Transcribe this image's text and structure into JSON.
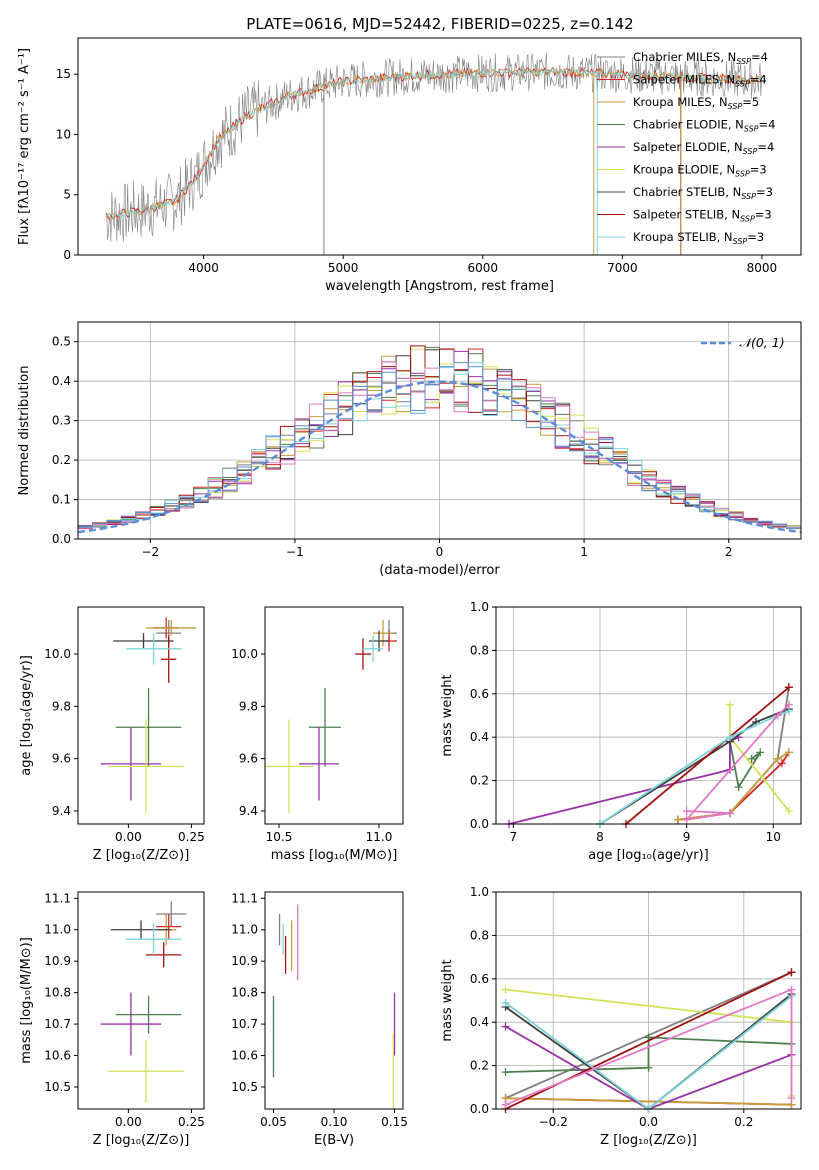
{
  "title": "PLATE=0616, MJD=52442, FIBERID=0225, z=0.142",
  "colors": {
    "Chabrier MILES": "#7f7f7f",
    "Salpeter MILES": "#d62728",
    "Kroupa MILES": "#c89b3c",
    "Chabrier ELODIE": "#4c7f4c",
    "Salpeter ELODIE": "#9932a8",
    "Kroupa ELODIE": "#d4e157",
    "Chabrier STELIB": "#3f3f3f",
    "Salpeter STELIB": "#a01010",
    "Kroupa STELIB": "#7fd4dc",
    "Normal": "#5b8ed6"
  },
  "chart_data": [
    {
      "type": "line",
      "name": "spectrum",
      "xlabel": "wavelength [Angstrom, rest frame]",
      "ylabel": "Flux [fλ10⁻¹⁷ erg cm⁻² s⁻¹ A⁻¹]",
      "xlim": [
        3100,
        8280
      ],
      "ylim": [
        0,
        18
      ],
      "xticks": [
        4000,
        5000,
        6000,
        7000,
        8000
      ],
      "yticks": [
        0,
        5,
        10,
        15
      ],
      "legend": [
        "Chabrier MILES, Nₛₛₚ=4",
        "Salpeter MILES, Nₛₛₚ=4",
        "Kroupa MILES, Nₛₛₚ=5",
        "Chabrier ELODIE, Nₛₛₚ=4",
        "Salpeter ELODIE, Nₛₛₚ=4",
        "Kroupa ELODIE, Nₛₛₚ=3",
        "Chabrier STELIB, Nₛₛₚ=3",
        "Salpeter STELIB, Nₛₛₚ=3",
        "Kroupa STELIB, Nₛₛₚ=3"
      ],
      "legend_placement": "upper-right",
      "continuum": [
        [
          3300,
          3.2
        ],
        [
          3600,
          3.8
        ],
        [
          3800,
          4.5
        ],
        [
          3950,
          6.5
        ],
        [
          4100,
          9.5
        ],
        [
          4300,
          11.5
        ],
        [
          4600,
          13.2
        ],
        [
          5000,
          14.4
        ],
        [
          5500,
          14.9
        ],
        [
          6000,
          15.1
        ],
        [
          6500,
          15.2
        ],
        [
          7000,
          15.0
        ],
        [
          7500,
          14.7
        ],
        [
          8000,
          14.5
        ]
      ]
    },
    {
      "type": "histogram",
      "name": "residuals",
      "xlabel": "(data-model)/error",
      "ylabel": "Normed distribution",
      "xlim": [
        -2.5,
        2.5
      ],
      "ylim": [
        0,
        0.55
      ],
      "xticks": [
        -2,
        -1,
        0,
        1,
        2
      ],
      "yticks": [
        0.0,
        0.1,
        0.2,
        0.3,
        0.4,
        0.5
      ],
      "bin_width": 0.1,
      "grid": true,
      "legend": [
        "𝒩(0, 1)"
      ],
      "legend_placement": "upper-right"
    },
    {
      "type": "scatter",
      "name": "age_vs_Z",
      "xlabel": "Z [log₁₀(Z/Z⊙)]",
      "ylabel": "age  [log₁₀(age/yr)]",
      "xlim": [
        -0.2,
        0.3
      ],
      "ylim": [
        9.35,
        10.18
      ],
      "xticks": [
        0.0,
        0.25
      ],
      "yticks": [
        9.4,
        9.6,
        9.8,
        10.0
      ],
      "points": [
        {
          "s": "Chabrier MILES",
          "x": 0.16,
          "y": 10.08,
          "ex": 0.05,
          "ey": 0.05
        },
        {
          "s": "Salpeter MILES",
          "x": 0.15,
          "y": 10.1,
          "ex": 0.05,
          "ey": 0.04
        },
        {
          "s": "Kroupa MILES",
          "x": 0.17,
          "y": 10.1,
          "ex": 0.1,
          "ey": 0.03
        },
        {
          "s": "Chabrier ELODIE",
          "x": 0.08,
          "y": 9.72,
          "ex": 0.13,
          "ey": 0.15
        },
        {
          "s": "Salpeter ELODIE",
          "x": 0.01,
          "y": 9.58,
          "ex": 0.12,
          "ey": 0.14
        },
        {
          "s": "Kroupa ELODIE",
          "x": 0.07,
          "y": 9.57,
          "ex": 0.15,
          "ey": 0.18
        },
        {
          "s": "Chabrier STELIB",
          "x": 0.06,
          "y": 10.05,
          "ex": 0.12,
          "ey": 0.03
        },
        {
          "s": "Salpeter STELIB",
          "x": 0.16,
          "y": 9.98,
          "ex": 0.03,
          "ey": 0.09
        },
        {
          "s": "Kroupa STELIB",
          "x": 0.1,
          "y": 10.02,
          "ex": 0.11,
          "ey": 0.06
        }
      ]
    },
    {
      "type": "scatter",
      "name": "age_vs_mass",
      "xlabel": "mass [log₁₀(M/M⊙)]",
      "ylabel": "",
      "xlim": [
        10.43,
        11.12
      ],
      "ylim": [
        9.35,
        10.18
      ],
      "xticks": [
        10.5,
        11.0
      ],
      "yticks": [
        9.4,
        9.6,
        9.8,
        10.0
      ],
      "points": [
        {
          "s": "Chabrier MILES",
          "x": 11.05,
          "y": 10.08,
          "ex": 0.04,
          "ey": 0.05
        },
        {
          "s": "Salpeter MILES",
          "x": 11.05,
          "y": 10.05,
          "ex": 0.04,
          "ey": 0.04
        },
        {
          "s": "Kroupa MILES",
          "x": 11.02,
          "y": 10.08,
          "ex": 0.05,
          "ey": 0.05
        },
        {
          "s": "Chabrier ELODIE",
          "x": 10.73,
          "y": 9.72,
          "ex": 0.08,
          "ey": 0.15
        },
        {
          "s": "Salpeter ELODIE",
          "x": 10.7,
          "y": 9.58,
          "ex": 0.1,
          "ey": 0.14
        },
        {
          "s": "Kroupa ELODIE",
          "x": 10.55,
          "y": 9.57,
          "ex": 0.12,
          "ey": 0.18
        },
        {
          "s": "Chabrier STELIB",
          "x": 11.0,
          "y": 10.05,
          "ex": 0.05,
          "ey": 0.04
        },
        {
          "s": "Salpeter STELIB",
          "x": 10.92,
          "y": 10.0,
          "ex": 0.04,
          "ey": 0.06
        },
        {
          "s": "Kroupa STELIB",
          "x": 10.97,
          "y": 10.02,
          "ex": 0.05,
          "ey": 0.05
        }
      ]
    },
    {
      "type": "line",
      "name": "mass_weight_vs_age",
      "xlabel": "age  [log₁₀(age/yr)]",
      "ylabel": "mass weight",
      "xlim": [
        6.8,
        10.32
      ],
      "ylim": [
        0,
        1.0
      ],
      "xticks": [
        7,
        8,
        9,
        10
      ],
      "yticks": [
        0.0,
        0.2,
        0.4,
        0.6,
        0.8,
        1.0
      ],
      "series": [
        {
          "s": "Chabrier MILES",
          "x": [
            8.9,
            9.5,
            10.05,
            10.18
          ],
          "y": [
            0.02,
            0.05,
            0.3,
            0.63
          ]
        },
        {
          "s": "Salpeter MILES",
          "x": [
            8.9,
            9.5,
            10.1,
            10.18
          ],
          "y": [
            0.02,
            0.05,
            0.28,
            0.33
          ]
        },
        {
          "s": "Kroupa MILES",
          "x": [
            8.9,
            9.5,
            10.05,
            10.18
          ],
          "y": [
            0.02,
            0.05,
            0.3,
            0.33
          ]
        },
        {
          "s": "Chabrier ELODIE",
          "x": [
            9.5,
            9.6,
            9.85,
            9.75
          ],
          "y": [
            0.38,
            0.17,
            0.33,
            0.3
          ]
        },
        {
          "s": "Salpeter ELODIE",
          "x": [
            6.95,
            9.5,
            9.5,
            9.6
          ],
          "y": [
            0.0,
            0.25,
            0.38,
            0.4
          ]
        },
        {
          "s": "Kroupa ELODIE",
          "x": [
            9.5,
            9.5,
            10.18
          ],
          "y": [
            0.55,
            0.4,
            0.06
          ]
        },
        {
          "s": "Chabrier STELIB",
          "x": [
            8.0,
            9.5,
            9.8,
            10.18
          ],
          "y": [
            0.0,
            0.38,
            0.47,
            0.53
          ]
        },
        {
          "s": "Salpeter STELIB",
          "x": [
            8.3,
            10.18
          ],
          "y": [
            0.0,
            0.63
          ]
        },
        {
          "s": "Kroupa STELIB",
          "x": [
            8.0,
            9.5,
            10.05,
            10.18
          ],
          "y": [
            0.0,
            0.4,
            0.5,
            0.52
          ]
        },
        {
          "s": "Pink",
          "x": [
            9.0,
            9.5,
            9.0,
            10.05,
            10.18
          ],
          "y": [
            0.06,
            0.05,
            0.02,
            0.5,
            0.55
          ]
        }
      ]
    },
    {
      "type": "scatter",
      "name": "mass_vs_Z",
      "xlabel": "Z [log₁₀(Z/Z⊙)]",
      "ylabel": "mass [log₁₀(M/M⊙)]",
      "xlim": [
        -0.2,
        0.3
      ],
      "ylim": [
        10.43,
        11.12
      ],
      "xticks": [
        0.0,
        0.25
      ],
      "yticks": [
        10.5,
        10.6,
        10.7,
        10.8,
        10.9,
        11.0,
        11.1
      ],
      "points": [
        {
          "s": "Chabrier MILES",
          "x": 0.17,
          "y": 11.05,
          "ex": 0.06,
          "ey": 0.04
        },
        {
          "s": "Salpeter MILES",
          "x": 0.16,
          "y": 11.01,
          "ex": 0.05,
          "ey": 0.04
        },
        {
          "s": "Kroupa MILES",
          "x": 0.15,
          "y": 11.0,
          "ex": 0.04,
          "ey": 0.05
        },
        {
          "s": "Chabrier ELODIE",
          "x": 0.08,
          "y": 10.73,
          "ex": 0.13,
          "ey": 0.06
        },
        {
          "s": "Salpeter ELODIE",
          "x": 0.01,
          "y": 10.7,
          "ex": 0.12,
          "ey": 0.1
        },
        {
          "s": "Kroupa ELODIE",
          "x": 0.07,
          "y": 10.55,
          "ex": 0.15,
          "ey": 0.1
        },
        {
          "s": "Chabrier STELIB",
          "x": 0.05,
          "y": 11.0,
          "ex": 0.12,
          "ey": 0.03
        },
        {
          "s": "Salpeter STELIB",
          "x": 0.14,
          "y": 10.92,
          "ex": 0.07,
          "ey": 0.04
        },
        {
          "s": "Kroupa STELIB",
          "x": 0.1,
          "y": 10.97,
          "ex": 0.11,
          "ey": 0.05
        }
      ]
    },
    {
      "type": "scatter",
      "name": "mass_vs_EBV",
      "xlabel": "E(B-V)",
      "ylabel": "",
      "xlim": [
        0.043,
        0.157
      ],
      "ylim": [
        10.43,
        11.12
      ],
      "xticks": [
        0.05,
        0.1,
        0.15
      ],
      "yticks": [
        10.5,
        10.6,
        10.7,
        10.8,
        10.9,
        11.0,
        11.1
      ],
      "points": [
        {
          "s": "Chabrier MILES",
          "x": 0.055,
          "y": 11.0,
          "ex": 0,
          "ey": 0.05
        },
        {
          "s": "Kroupa MILES",
          "x": 0.065,
          "y": 10.95,
          "ex": 0,
          "ey": 0.08
        },
        {
          "s": "Chabrier ELODIE",
          "x": 0.05,
          "y": 10.66,
          "ex": 0,
          "ey": 0.13
        },
        {
          "s": "Salpeter ELODIE",
          "x": 0.15,
          "y": 10.7,
          "ex": 0,
          "ey": 0.1
        },
        {
          "s": "Kroupa ELODIE",
          "x": 0.149,
          "y": 10.55,
          "ex": 0,
          "ey": 0.12
        },
        {
          "s": "Salpeter STELIB",
          "x": 0.06,
          "y": 10.92,
          "ex": 0,
          "ey": 0.06
        },
        {
          "s": "Kroupa STELIB",
          "x": 0.058,
          "y": 10.97,
          "ex": 0,
          "ey": 0.05
        },
        {
          "s": "Pink",
          "x": 0.07,
          "y": 10.96,
          "ex": 0,
          "ey": 0.12
        }
      ]
    },
    {
      "type": "line",
      "name": "mass_weight_vs_Z",
      "xlabel": "Z [log₁₀(Z/Z⊙)]",
      "ylabel": "mass weight",
      "xlim": [
        -0.32,
        0.32
      ],
      "ylim": [
        0,
        1.0
      ],
      "xticks": [
        -0.2,
        0.0,
        0.2
      ],
      "yticks": [
        0.0,
        0.2,
        0.4,
        0.6,
        0.8,
        1.0
      ],
      "series": [
        {
          "s": "Chabrier MILES",
          "x": [
            -0.3,
            0.3
          ],
          "y": [
            0.05,
            0.63
          ]
        },
        {
          "s": "Salpeter MILES",
          "x": [
            -0.3,
            0.3
          ],
          "y": [
            0.05,
            0.02
          ]
        },
        {
          "s": "Kroupa MILES",
          "x": [
            -0.3,
            0.3
          ],
          "y": [
            0.05,
            0.02
          ]
        },
        {
          "s": "Chabrier ELODIE",
          "x": [
            -0.3,
            0.0,
            0.0,
            0.3
          ],
          "y": [
            0.17,
            0.19,
            0.33,
            0.3
          ]
        },
        {
          "s": "Salpeter ELODIE",
          "x": [
            -0.3,
            0.0,
            0.3,
            0.3
          ],
          "y": [
            0.38,
            0.0,
            0.25,
            0.4
          ]
        },
        {
          "s": "Kroupa ELODIE",
          "x": [
            -0.3,
            0.3,
            0.3
          ],
          "y": [
            0.55,
            0.4,
            0.06
          ]
        },
        {
          "s": "Chabrier STELIB",
          "x": [
            -0.3,
            0.0,
            0.3
          ],
          "y": [
            0.47,
            0.0,
            0.53
          ]
        },
        {
          "s": "Salpeter STELIB",
          "x": [
            -0.3,
            0.3
          ],
          "y": [
            0.0,
            0.63
          ]
        },
        {
          "s": "Kroupa STELIB",
          "x": [
            -0.3,
            0.0,
            0.3
          ],
          "y": [
            0.49,
            0.0,
            0.52
          ]
        },
        {
          "s": "Pink",
          "x": [
            -0.3,
            0.3,
            0.3
          ],
          "y": [
            0.02,
            0.55,
            0.05
          ]
        }
      ]
    }
  ]
}
